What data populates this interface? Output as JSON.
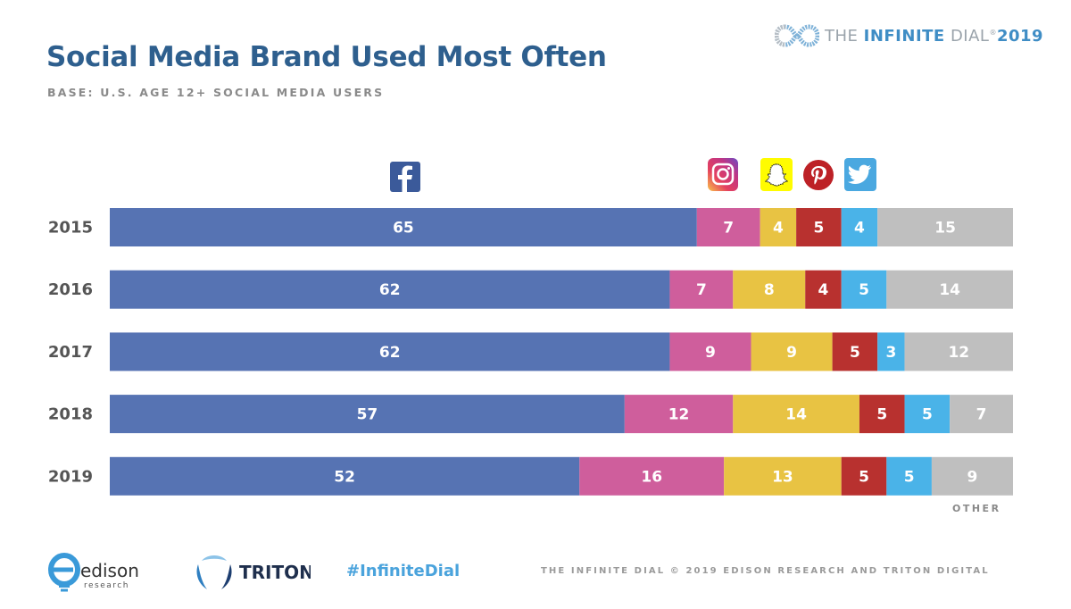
{
  "header": {
    "title": "Social Media Brand Used Most Often",
    "subtitle": "BASE: U.S. AGE 12+ SOCIAL MEDIA USERS",
    "brand": {
      "the": "THE ",
      "infinite": "INFINITE",
      "dial": " DIAL",
      "year": "2019"
    }
  },
  "footer": {
    "edison_name": "edison",
    "edison_sub": "research",
    "triton_name": "TRITON",
    "hashtag": "#InfiniteDial",
    "copyright": "THE INFINITE DIAL   © 2019 EDISON RESEARCH AND TRITON DIGITAL"
  },
  "chart_data": {
    "type": "bar",
    "orientation": "horizontal",
    "stacked": true,
    "title": "Social Media Brand Used Most Often",
    "subtitle": "BASE: U.S. AGE 12+ SOCIAL MEDIA USERS",
    "xlabel": "",
    "ylabel": "",
    "xlim": [
      0,
      100
    ],
    "grid": false,
    "legend": "icons above bars (top)",
    "categories": [
      "2015",
      "2016",
      "2017",
      "2018",
      "2019"
    ],
    "series": [
      {
        "name": "Facebook",
        "icon": "facebook-icon",
        "color": "#5673b3",
        "values": [
          65,
          62,
          62,
          57,
          52
        ]
      },
      {
        "name": "Instagram",
        "icon": "instagram-icon",
        "color": "#cf5e9c",
        "values": [
          7,
          7,
          9,
          12,
          16
        ]
      },
      {
        "name": "Snapchat",
        "icon": "snapchat-icon",
        "color": "#e8c343",
        "values": [
          4,
          8,
          9,
          14,
          13
        ]
      },
      {
        "name": "Pinterest",
        "icon": "pinterest-icon",
        "color": "#b8312f",
        "values": [
          5,
          4,
          5,
          5,
          5
        ]
      },
      {
        "name": "Twitter",
        "icon": "twitter-icon",
        "color": "#4ab3e8",
        "values": [
          4,
          5,
          3,
          5,
          5
        ]
      },
      {
        "name": "Other",
        "icon": "",
        "color": "#bfbfbf",
        "values": [
          15,
          14,
          12,
          7,
          9
        ]
      }
    ],
    "annotations": [
      "OTHER"
    ]
  }
}
